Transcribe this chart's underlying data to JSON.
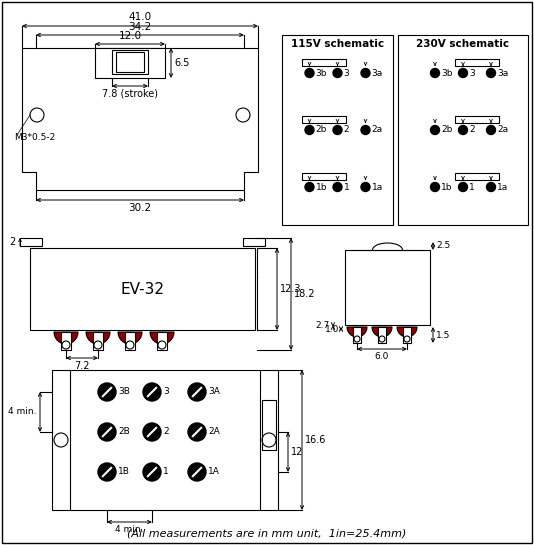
{
  "bg_color": "#ffffff",
  "line_color": "#000000",
  "dark_red": "#8B0000",
  "title_bottom": "(All measurements are in mm unit,  1in=25.4mm)",
  "dim_41": "41.0",
  "dim_34_2": "34.2",
  "dim_12_0": "12.0",
  "dim_6_5": "6.5",
  "dim_7_8": "7.8 (stroke)",
  "dim_30_2": "30.2",
  "dim_2": "2",
  "dim_12_3": "12.3",
  "dim_18_2": "18.2",
  "dim_7_2": "7.2",
  "dim_2_5": "2.5",
  "dim_2_7": "2.7",
  "dim_1_0": "1.0",
  "dim_1_5": "1.5",
  "dim_6_0": "6.0",
  "dim_12": "12",
  "dim_16_6": "16.6",
  "dim_4min": "4 min.",
  "label_m3": "M3*0.5-2",
  "label_ev32": "EV-32",
  "sch115": "115V schematic",
  "sch230": "230V schematic"
}
